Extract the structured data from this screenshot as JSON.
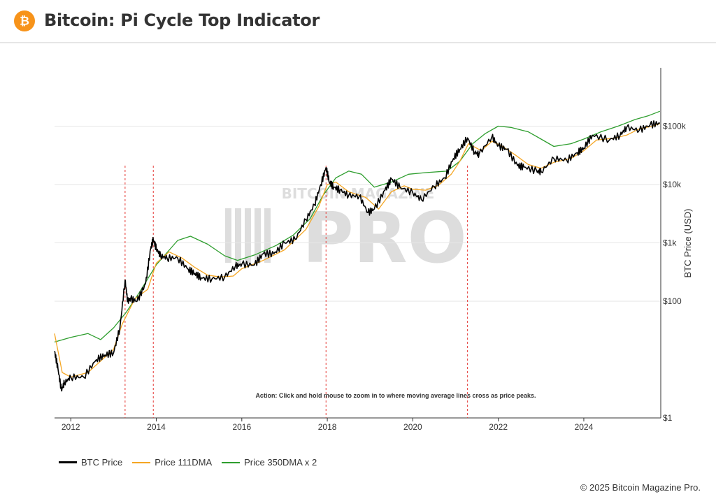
{
  "header": {
    "title": "Bitcoin: Pi Cycle Top Indicator",
    "logo_icon": "bitcoin-logo-icon",
    "logo_glyph": "₿"
  },
  "colors": {
    "brand_orange": "#f7931a",
    "price": "#000000",
    "dma111": "#f5a623",
    "dma350x2": "#2e9e2e",
    "cross_lines": "#e53935",
    "grid": "#e6e6e6"
  },
  "watermark": {
    "top": "BITCOIN MAGAZINE",
    "main": "PRO"
  },
  "annotation": "Action: Click and hold mouse to zoom in to where moving average lines cross as price peaks.",
  "footer": {
    "copyright": "© 2025 Bitcoin Magazine Pro."
  },
  "chart_data": {
    "type": "line",
    "title": "Bitcoin: Pi Cycle Top Indicator",
    "ylabel": "BTC Price (USD)",
    "yscale": "log",
    "ylim": [
      1,
      1000000
    ],
    "xlim": [
      2011.62,
      2025.8
    ],
    "xticks": [
      "2012",
      "2014",
      "2016",
      "2018",
      "2020",
      "2022",
      "2024"
    ],
    "yticks": [
      {
        "value": 1,
        "label": "$1"
      },
      {
        "value": 100,
        "label": "$100"
      },
      {
        "value": 1000,
        "label": "$1k"
      },
      {
        "value": 10000,
        "label": "$10k"
      },
      {
        "value": 100000,
        "label": "$100k"
      }
    ],
    "grid": true,
    "legend_position": "bottom-left",
    "cross_dates": [
      2013.27,
      2013.93,
      2017.97,
      2021.28
    ],
    "series": [
      {
        "name": "BTC Price",
        "x": [
          2011.62,
          2011.7,
          2011.78,
          2011.85,
          2012.0,
          2012.3,
          2012.6,
          2012.8,
          2013.0,
          2013.15,
          2013.27,
          2013.33,
          2013.4,
          2013.55,
          2013.75,
          2013.87,
          2013.93,
          2014.0,
          2014.1,
          2014.25,
          2014.5,
          2014.75,
          2014.9,
          2015.05,
          2015.3,
          2015.6,
          2015.85,
          2016.0,
          2016.3,
          2016.5,
          2016.75,
          2017.0,
          2017.25,
          2017.5,
          2017.7,
          2017.85,
          2017.97,
          2018.05,
          2018.15,
          2018.3,
          2018.5,
          2018.75,
          2018.95,
          2019.1,
          2019.35,
          2019.5,
          2019.7,
          2020.0,
          2020.2,
          2020.5,
          2020.75,
          2020.95,
          2021.1,
          2021.28,
          2021.45,
          2021.55,
          2021.85,
          2022.0,
          2022.2,
          2022.45,
          2022.6,
          2022.9,
          2023.0,
          2023.3,
          2023.6,
          2023.85,
          2024.0,
          2024.2,
          2024.6,
          2024.85,
          2025.0,
          2025.3,
          2025.55,
          2025.78
        ],
        "values": [
          14,
          7,
          3,
          4,
          5,
          5,
          10,
          12,
          13,
          35,
          230,
          100,
          110,
          100,
          200,
          800,
          1150,
          800,
          600,
          550,
          550,
          350,
          300,
          250,
          240,
          260,
          400,
          430,
          420,
          650,
          650,
          1000,
          1150,
          2500,
          4500,
          10000,
          19500,
          11000,
          9000,
          8000,
          6500,
          6300,
          3300,
          3800,
          8000,
          12500,
          9000,
          7200,
          5500,
          9300,
          13000,
          28000,
          40000,
          63000,
          35000,
          33000,
          66000,
          46000,
          40000,
          21000,
          20000,
          17000,
          16500,
          28000,
          26000,
          35000,
          42000,
          70000,
          58000,
          70000,
          95000,
          85000,
          105000,
          113000
        ]
      },
      {
        "name": "Price 111DMA",
        "x": [
          2011.62,
          2011.8,
          2012.0,
          2012.4,
          2012.8,
          2013.0,
          2013.2,
          2013.5,
          2013.8,
          2014.0,
          2014.3,
          2014.6,
          2014.9,
          2015.2,
          2015.5,
          2015.8,
          2016.0,
          2016.5,
          2017.0,
          2017.5,
          2017.8,
          2018.0,
          2018.2,
          2018.5,
          2018.9,
          2019.2,
          2019.5,
          2019.8,
          2020.0,
          2020.3,
          2020.6,
          2020.9,
          2021.1,
          2021.3,
          2021.6,
          2021.85,
          2022.1,
          2022.4,
          2022.7,
          2023.0,
          2023.3,
          2023.7,
          2024.0,
          2024.3,
          2024.7,
          2025.0,
          2025.3,
          2025.6,
          2025.78
        ],
        "values": [
          28,
          6,
          5,
          6,
          11,
          15,
          40,
          110,
          160,
          450,
          700,
          550,
          380,
          280,
          260,
          270,
          360,
          500,
          760,
          1700,
          4200,
          10000,
          11000,
          7500,
          6000,
          3800,
          7500,
          9500,
          8300,
          8000,
          9700,
          15000,
          25000,
          50000,
          38000,
          55000,
          45000,
          32000,
          22000,
          19000,
          24000,
          28000,
          38000,
          58000,
          62000,
          70000,
          90000,
          100000,
          110000
        ]
      },
      {
        "name": "Price 350DMA x 2",
        "x": [
          2011.62,
          2012.0,
          2012.4,
          2012.7,
          2013.0,
          2013.3,
          2013.6,
          2014.0,
          2014.5,
          2014.8,
          2015.2,
          2015.6,
          2015.9,
          2016.3,
          2016.8,
          2017.2,
          2017.6,
          2017.9,
          2018.2,
          2018.5,
          2018.8,
          2019.1,
          2019.5,
          2019.9,
          2020.3,
          2020.8,
          2021.1,
          2021.4,
          2021.7,
          2022.0,
          2022.3,
          2022.7,
          2023.0,
          2023.3,
          2023.7,
          2024.0,
          2024.4,
          2024.8,
          2025.2,
          2025.5,
          2025.78
        ],
        "values": [
          20,
          24,
          28,
          22,
          35,
          65,
          140,
          420,
          1100,
          1300,
          950,
          600,
          500,
          620,
          900,
          1350,
          2600,
          6500,
          13000,
          17000,
          15000,
          9000,
          11000,
          15000,
          16000,
          17000,
          25000,
          50000,
          75000,
          100000,
          95000,
          80000,
          60000,
          45000,
          50000,
          60000,
          80000,
          100000,
          130000,
          150000,
          180000
        ]
      }
    ]
  }
}
